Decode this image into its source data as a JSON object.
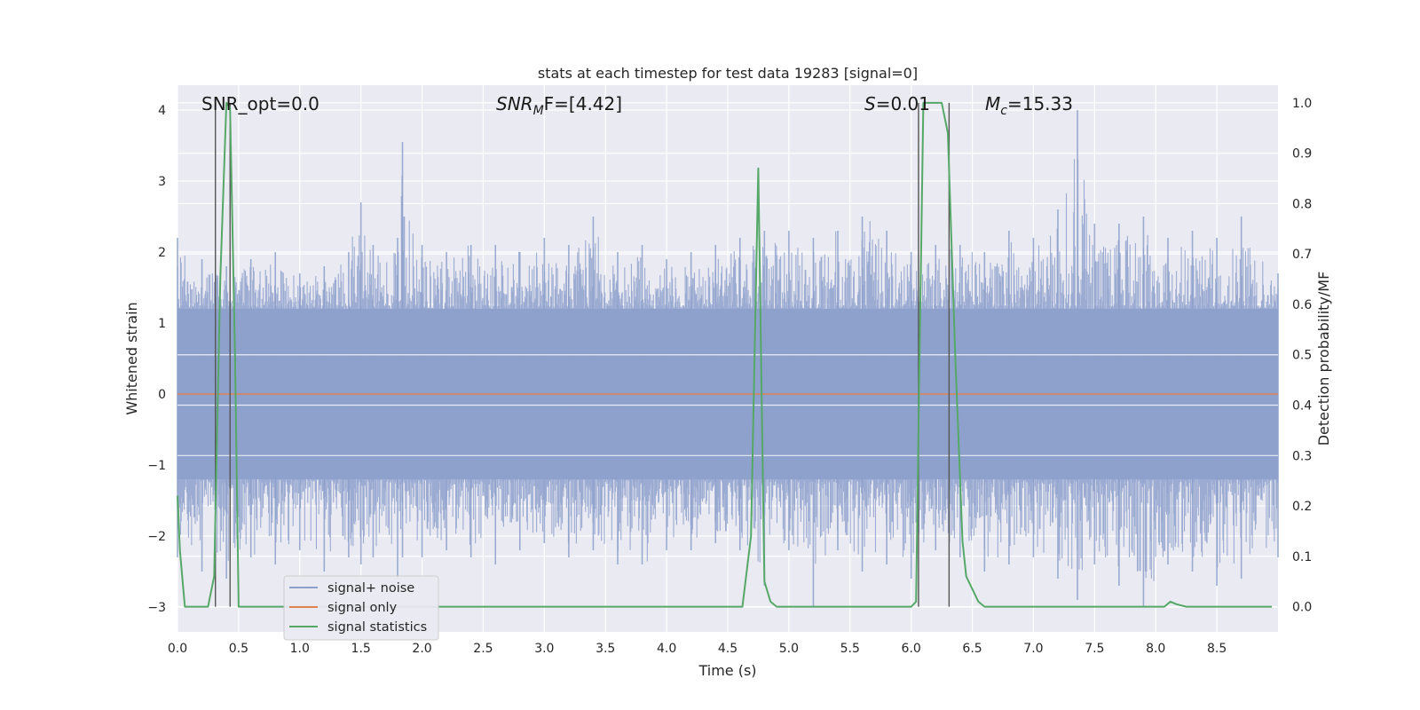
{
  "chart_data": {
    "type": "line",
    "title": "stats at each timestep for test data 19283 [signal=0]",
    "xlabel": "Time (s)",
    "ylabel_left": "Whitened strain",
    "ylabel_right": "Detection probability/MF",
    "xlim": [
      0.0,
      9.0
    ],
    "ylim_left": [
      -3.35,
      4.35
    ],
    "ylim_right": [
      -0.05,
      1.035
    ],
    "x_ticks": [
      "0.0",
      "0.5",
      "1.0",
      "1.5",
      "2.0",
      "2.5",
      "3.0",
      "3.5",
      "4.0",
      "4.5",
      "5.0",
      "5.5",
      "6.0",
      "6.5",
      "7.0",
      "7.5",
      "8.0",
      "8.5"
    ],
    "y_ticks_left": [
      "4",
      "3",
      "2",
      "1",
      "0",
      "−1",
      "−2",
      "−3"
    ],
    "y_ticks_right": [
      "1.0",
      "0.9",
      "0.8",
      "0.7",
      "0.6",
      "0.5",
      "0.4",
      "0.3",
      "0.2",
      "0.1",
      "0.0"
    ],
    "grid": true,
    "legend_position": "lower-left",
    "annotations": {
      "snr_opt": "SNR_opt=0.0",
      "snr_mf_main": "SNR",
      "snr_mf_sub": "M",
      "snr_mf_tail": "F=[4.42]",
      "s_main": "S",
      "s_tail": "=0.01",
      "mc_main": "M",
      "mc_sub": "c",
      "mc_tail": "=15.33"
    },
    "vertical_markers": [
      0.31,
      0.43,
      6.06,
      6.31
    ],
    "noise_envelope": {
      "x": [
        0.0,
        0.2,
        0.4,
        0.6,
        0.8,
        1.0,
        1.2,
        1.4,
        1.5,
        1.6,
        1.8,
        1.84,
        2.0,
        2.2,
        2.4,
        2.6,
        2.8,
        3.0,
        3.2,
        3.4,
        3.6,
        3.8,
        4.0,
        4.2,
        4.4,
        4.6,
        4.8,
        5.0,
        5.2,
        5.4,
        5.6,
        5.8,
        6.0,
        6.2,
        6.4,
        6.6,
        6.8,
        7.0,
        7.2,
        7.36,
        7.5,
        7.7,
        7.9,
        8.1,
        8.3,
        8.5,
        8.7,
        9.0
      ],
      "upper": [
        2.2,
        1.9,
        1.8,
        1.9,
        2.0,
        1.7,
        1.8,
        2.0,
        2.7,
        2.1,
        2.2,
        3.55,
        2.1,
        2.0,
        2.1,
        2.1,
        2.0,
        2.2,
        2.1,
        2.5,
        2.0,
        2.1,
        1.9,
        2.0,
        2.1,
        2.2,
        2.3,
        2.3,
        2.2,
        2.3,
        2.5,
        2.3,
        2.0,
        2.1,
        2.1,
        2.0,
        2.3,
        2.2,
        2.6,
        4.0,
        2.4,
        2.4,
        2.5,
        2.2,
        2.3,
        2.2,
        2.5,
        1.7
      ],
      "lower": [
        -2.3,
        -2.5,
        -2.6,
        -2.3,
        -2.4,
        -2.2,
        -2.5,
        -2.3,
        -2.4,
        -2.3,
        -2.6,
        -2.3,
        -2.3,
        -2.2,
        -2.3,
        -2.4,
        -2.2,
        -2.1,
        -2.3,
        -2.2,
        -2.4,
        -2.4,
        -2.2,
        -2.2,
        -2.1,
        -2.2,
        -2.7,
        -2.2,
        -3.0,
        -2.2,
        -2.5,
        -2.4,
        -2.6,
        -2.2,
        -2.3,
        -2.5,
        -2.4,
        -2.3,
        -2.6,
        -2.9,
        -2.4,
        -2.7,
        -3.0,
        -2.4,
        -2.5,
        -2.7,
        -2.6,
        -2.3
      ],
      "core": 1.2
    },
    "series": [
      {
        "name": "signal+ noise",
        "color": "#8da0cb",
        "style": "dense-noise"
      },
      {
        "name": "signal only",
        "color": "#dd8452",
        "x": [
          0.0,
          9.0
        ],
        "y": [
          0.0,
          0.0
        ]
      },
      {
        "name": "signal statistics",
        "color": "#55a868",
        "axis": "right",
        "x": [
          0.0,
          0.02,
          0.06,
          0.1,
          0.2,
          0.25,
          0.3,
          0.35,
          0.4,
          0.43,
          0.47,
          0.5,
          0.55,
          0.6,
          1.0,
          2.0,
          3.0,
          4.0,
          4.5,
          4.62,
          4.69,
          4.75,
          4.8,
          4.85,
          4.9,
          5.0,
          5.5,
          6.0,
          6.04,
          6.06,
          6.1,
          6.15,
          6.25,
          6.3,
          6.36,
          6.42,
          6.45,
          6.55,
          6.6,
          6.7,
          7.0,
          7.5,
          8.0,
          8.07,
          8.12,
          8.17,
          8.25,
          8.5,
          8.95
        ],
        "y": [
          0.22,
          0.11,
          0.0,
          0.0,
          0.0,
          0.0,
          0.06,
          0.65,
          1.0,
          0.99,
          0.5,
          0.0,
          0.0,
          0.0,
          0.0,
          0.0,
          0.0,
          0.0,
          0.0,
          0.0,
          0.14,
          0.87,
          0.05,
          0.01,
          0.0,
          0.0,
          0.0,
          0.0,
          0.01,
          0.35,
          1.0,
          1.0,
          1.0,
          0.94,
          0.5,
          0.13,
          0.06,
          0.01,
          0.0,
          0.0,
          0.0,
          0.0,
          0.0,
          0.0,
          0.01,
          0.005,
          0.0,
          0.0,
          0.0
        ]
      }
    ]
  },
  "colors": {
    "background": "#eaeaf2",
    "grid": "#ffffff",
    "noise": "#8da0cb",
    "signal_only": "#dd8452",
    "statistics": "#55a868",
    "marker": "#555555"
  }
}
